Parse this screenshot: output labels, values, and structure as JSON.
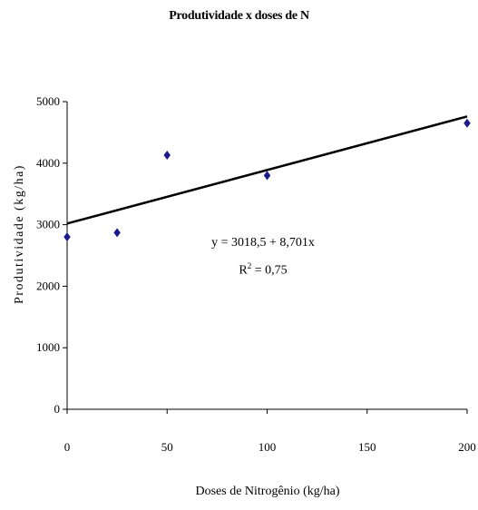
{
  "chart_data": {
    "type": "scatter",
    "title": "Produtividade x doses de N",
    "xlabel": "Doses de Nitrogênio (kg/ha)",
    "ylabel": "Produtividade (kg/ha)",
    "xlim": [
      0,
      200
    ],
    "ylim": [
      0,
      5000
    ],
    "x_ticks": [
      "0",
      "50",
      "100",
      "150",
      "200"
    ],
    "y_ticks": [
      "0",
      "1000",
      "2000",
      "3000",
      "4000",
      "5000"
    ],
    "x_tick_values": [
      0,
      50,
      100,
      150,
      200
    ],
    "y_tick_values": [
      0,
      1000,
      2000,
      3000,
      4000,
      5000
    ],
    "grid": false,
    "series": [
      {
        "x": [
          0,
          25,
          50,
          100,
          200
        ],
        "y": [
          2800,
          2870,
          4130,
          3800,
          4650
        ],
        "marker": "diamond",
        "color": "#1a1a8c"
      }
    ],
    "trendline": {
      "intercept": 3018.5,
      "slope": 8.701,
      "x_range": [
        0,
        200
      ],
      "color": "#000000"
    },
    "annotations": {
      "equation": "y = 3018,5 + 8,701x",
      "r2_label": "R",
      "r2_sup": "2",
      "r2_value": " = 0,75"
    }
  }
}
